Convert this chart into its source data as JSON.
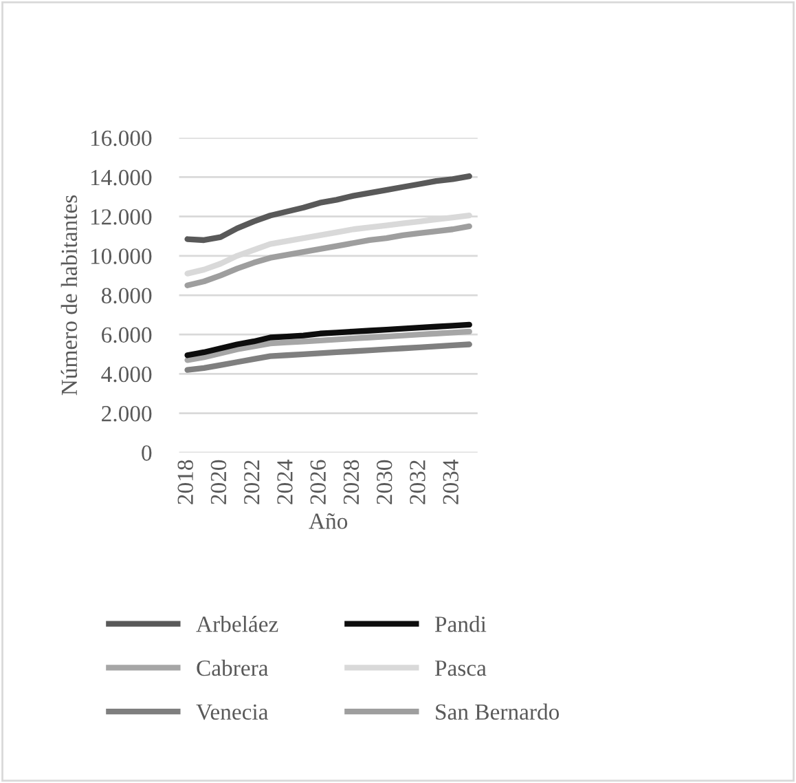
{
  "chart_data": {
    "type": "line",
    "xlabel": "Año",
    "ylabel": "Número de habitantes",
    "x": [
      2018,
      2019,
      2020,
      2021,
      2022,
      2023,
      2024,
      2025,
      2026,
      2027,
      2028,
      2029,
      2030,
      2031,
      2032,
      2033,
      2034,
      2035
    ],
    "xlim": [
      2017.5,
      2035.5
    ],
    "xticks": [
      2018,
      2020,
      2022,
      2024,
      2026,
      2028,
      2030,
      2032,
      2034
    ],
    "ylim": [
      0,
      16000
    ],
    "yticks": [
      {
        "value": 0,
        "label": "0"
      },
      {
        "value": 2000,
        "label": "2.000"
      },
      {
        "value": 4000,
        "label": "4.000"
      },
      {
        "value": 6000,
        "label": "6.000"
      },
      {
        "value": 8000,
        "label": "8.000"
      },
      {
        "value": 10000,
        "label": "10.000"
      },
      {
        "value": 12000,
        "label": "12.000"
      },
      {
        "value": 14000,
        "label": "14.000"
      },
      {
        "value": 16000,
        "label": "16.000"
      }
    ],
    "grid": "y",
    "legend": "bottom",
    "marker": "none",
    "line_style": "solid",
    "series": [
      {
        "name": "Arbeláez",
        "color": "#595959",
        "values": [
          10850,
          10800,
          10950,
          11400,
          11750,
          12050,
          12250,
          12450,
          12700,
          12850,
          13050,
          13200,
          13350,
          13500,
          13650,
          13800,
          13900,
          14050
        ]
      },
      {
        "name": "Cabrera",
        "color": "#a6a6a6",
        "values": [
          4700,
          4850,
          5050,
          5250,
          5400,
          5550,
          5600,
          5650,
          5700,
          5750,
          5800,
          5850,
          5900,
          5950,
          6000,
          6050,
          6100,
          6150
        ]
      },
      {
        "name": "Venecia",
        "color": "#7f7f7f",
        "values": [
          4200,
          4300,
          4450,
          4600,
          4750,
          4900,
          4950,
          5000,
          5050,
          5100,
          5150,
          5200,
          5250,
          5300,
          5350,
          5400,
          5450,
          5500
        ]
      },
      {
        "name": "Pandi",
        "color": "#0d0d0d",
        "values": [
          4950,
          5100,
          5300,
          5500,
          5650,
          5850,
          5900,
          5950,
          6050,
          6100,
          6150,
          6200,
          6250,
          6300,
          6350,
          6400,
          6450,
          6500
        ]
      },
      {
        "name": "Pasca",
        "color": "#d9d9d9",
        "values": [
          9100,
          9300,
          9600,
          10000,
          10300,
          10600,
          10750,
          10900,
          11050,
          11200,
          11350,
          11450,
          11550,
          11650,
          11750,
          11850,
          11950,
          12050
        ]
      },
      {
        "name": "San Bernardo",
        "color": "#9e9e9e",
        "values": [
          8500,
          8700,
          9000,
          9350,
          9650,
          9900,
          10050,
          10200,
          10350,
          10500,
          10650,
          10800,
          10900,
          11050,
          11150,
          11250,
          11350,
          11500
        ]
      }
    ]
  }
}
